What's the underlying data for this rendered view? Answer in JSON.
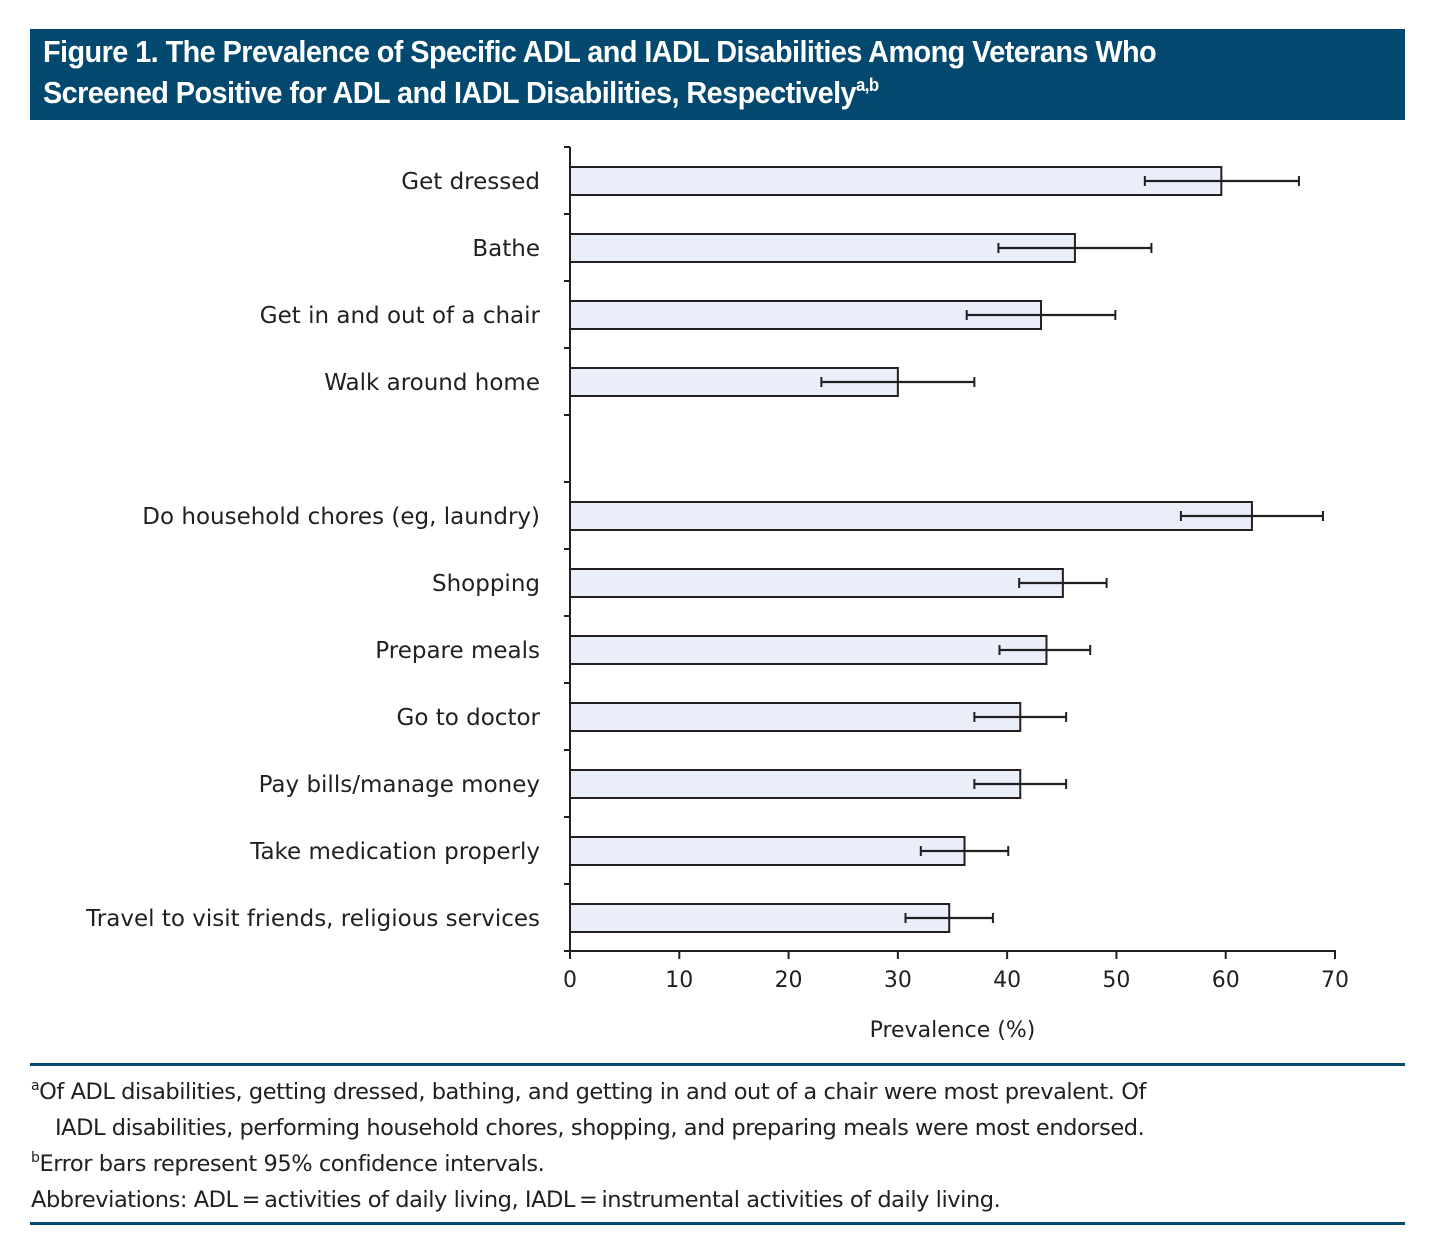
{
  "figure": {
    "title_line1": "Figure 1. The Prevalence of Specific ADL and IADL Disabilities Among Veterans Who",
    "title_line2": "Screened Positive for ADL and IADL Disabilities, Respectively",
    "title_superscript": "a,b",
    "accent_color": "#02486f",
    "bar_fill_color": "#e9eef9"
  },
  "chart_data": {
    "type": "bar",
    "orientation": "horizontal",
    "title": "The Prevalence of Specific ADL and IADL Disabilities Among Veterans Who Screened Positive for ADL and IADL Disabilities, Respectively",
    "xlabel": "Prevalence (%)",
    "ylabel": "",
    "xlim": [
      0,
      70
    ],
    "xticks": [
      0,
      10,
      20,
      30,
      40,
      50,
      60,
      70
    ],
    "grid": false,
    "legend": "none",
    "error_bars": "95% confidence intervals",
    "groups": [
      {
        "name": "ADL",
        "categories": [
          "Get dressed",
          "Bathe",
          "Get in and out of a chair",
          "Walk around home"
        ],
        "values": [
          59.6,
          46.2,
          43.1,
          30.0
        ],
        "ci_low": [
          52.6,
          39.2,
          36.3,
          23.0
        ],
        "ci_high": [
          66.7,
          53.2,
          49.9,
          37.0
        ]
      },
      {
        "name": "IADL",
        "categories": [
          "Do household chores (eg, laundry)",
          "Shopping",
          "Prepare meals",
          "Go to doctor",
          "Pay bills/manage money",
          "Take medication properly",
          "Travel to visit friends, religious services"
        ],
        "values": [
          62.4,
          45.1,
          43.6,
          41.2,
          41.2,
          36.1,
          34.7
        ],
        "ci_low": [
          55.9,
          41.1,
          39.3,
          37.0,
          37.0,
          32.1,
          30.7
        ],
        "ci_high": [
          68.9,
          49.1,
          47.6,
          45.4,
          45.4,
          40.1,
          38.7
        ]
      }
    ]
  },
  "footnotes": {
    "a_marker": "a",
    "a_line1": "Of ADL disabilities, getting dressed, bathing, and getting in and out of a chair were most prevalent. Of",
    "a_line2": "IADL disabilities, performing household chores, shopping, and preparing meals were most endorsed.",
    "b_marker": "b",
    "b_text": "Error bars represent 95% confidence intervals.",
    "abbreviations": "Abbreviations: ADL = activities of daily living, IADL = instrumental activities of daily living."
  }
}
